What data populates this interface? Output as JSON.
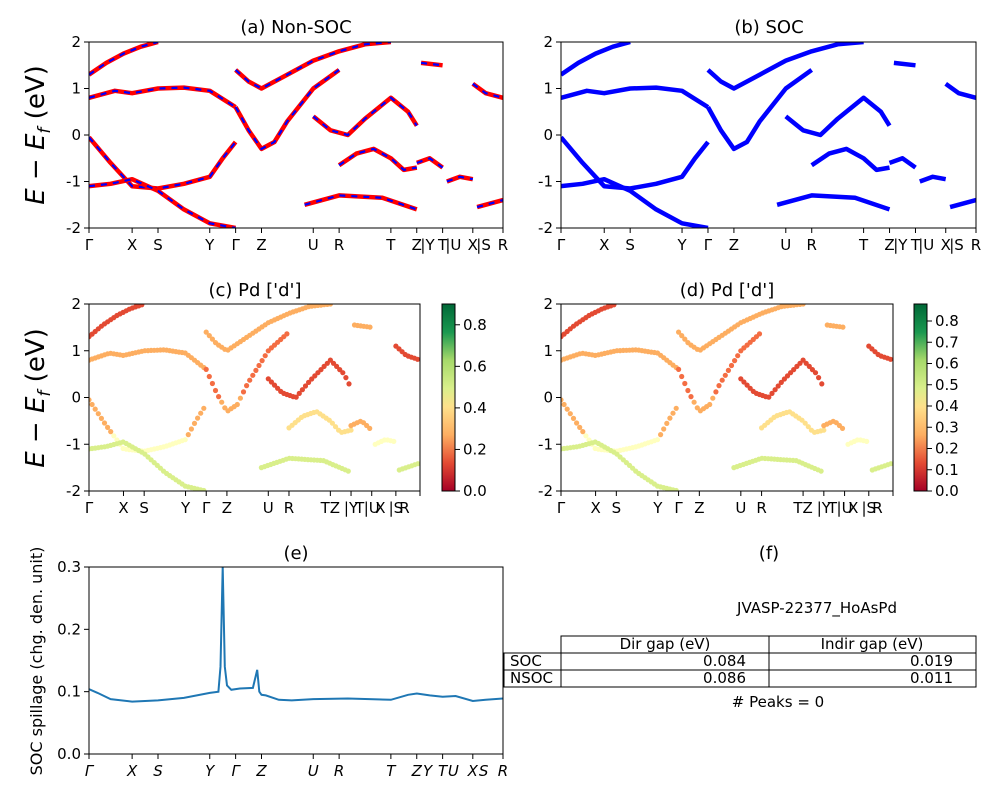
{
  "kpath": {
    "labels": [
      "Γ",
      "X",
      "S",
      "Y",
      "Γ",
      "Z",
      "U",
      "R",
      "T",
      "Z|Y",
      "T|U",
      "X|S",
      "R"
    ],
    "positions": [
      0.0,
      1.0,
      1.6,
      2.8,
      3.4,
      4.0,
      5.2,
      5.8,
      7.0,
      7.6,
      8.2,
      8.9,
      9.6
    ]
  },
  "chart_data": [
    {
      "id": "a",
      "type": "line",
      "title": "(a) Non-SOC",
      "ylabel": "E − E_f (eV)",
      "ylim": [
        -2,
        2
      ],
      "yticks": [
        "-2",
        "-1",
        "0",
        "1",
        "2"
      ],
      "xticklabels": [
        "Γ",
        "X",
        "S",
        "Y",
        "Γ",
        "Z",
        "U",
        "R",
        "T",
        "Z",
        "|Y",
        "T",
        "|U",
        "X",
        "|S",
        "R"
      ],
      "series": [
        {
          "style": "red solid + blue dashed",
          "bands": [
            {
              "x": [
                0,
                0.5,
                1,
                1.6,
                2.2,
                2.8,
                3.1,
                3.4
              ],
              "y": [
                -0.05,
                -0.6,
                -1.1,
                -1.15,
                -1.05,
                -0.9,
                -0.5,
                -0.15
              ]
            },
            {
              "x": [
                0,
                0.5,
                1,
                1.6,
                2.2,
                2.8,
                3.4
              ],
              "y": [
                -1.1,
                -1.05,
                -0.95,
                -1.2,
                -1.6,
                -1.9,
                -2.0
              ]
            },
            {
              "x": [
                0,
                0.6,
                1,
                1.6,
                2.2,
                2.8,
                3.4
              ],
              "y": [
                0.8,
                0.95,
                0.9,
                1.0,
                1.02,
                0.95,
                0.6
              ]
            },
            {
              "x": [
                0,
                0.4,
                0.8,
                1.2,
                1.6
              ],
              "y": [
                1.3,
                1.55,
                1.75,
                1.9,
                2.0
              ]
            },
            {
              "x": [
                3.4,
                3.7,
                4.0,
                4.3,
                4.6,
                5.2,
                5.8
              ],
              "y": [
                0.6,
                0.1,
                -0.3,
                -0.15,
                0.3,
                1.0,
                1.4
              ]
            },
            {
              "x": [
                3.4,
                3.7,
                4.0,
                4.6,
                5.2,
                5.8,
                6.4,
                7.0
              ],
              "y": [
                1.4,
                1.15,
                1.0,
                1.3,
                1.6,
                1.8,
                1.95,
                2.0
              ]
            },
            {
              "x": [
                5.2,
                5.6,
                6.0,
                6.4,
                7.0,
                7.4,
                7.6
              ],
              "y": [
                0.4,
                0.1,
                0.0,
                0.35,
                0.8,
                0.5,
                0.2
              ]
            },
            {
              "x": [
                5.8,
                6.2,
                6.6,
                7.0,
                7.3,
                7.6
              ],
              "y": [
                -0.65,
                -0.4,
                -0.3,
                -0.5,
                -0.75,
                -0.7
              ]
            },
            {
              "x": [
                7.6,
                7.9,
                8.2
              ],
              "y": [
                -0.6,
                -0.5,
                -0.7
              ]
            },
            {
              "x": [
                8.3,
                8.6,
                8.9
              ],
              "y": [
                -1.0,
                -0.9,
                -0.95
              ]
            },
            {
              "x": [
                9.0,
                9.6
              ],
              "y": [
                -1.55,
                -1.4
              ]
            },
            {
              "x": [
                7.7,
                8.2
              ],
              "y": [
                1.55,
                1.5
              ]
            },
            {
              "x": [
                8.9,
                9.2,
                9.6
              ],
              "y": [
                1.1,
                0.9,
                0.8
              ]
            },
            {
              "x": [
                5.0,
                5.8,
                6.8,
                7.6
              ],
              "y": [
                -1.5,
                -1.3,
                -1.35,
                -1.6
              ]
            }
          ]
        }
      ]
    },
    {
      "id": "b",
      "type": "line",
      "title": "(b) SOC",
      "ylim": [
        -2,
        2
      ],
      "yticks": [
        "-2",
        "-1",
        "0",
        "1",
        "2"
      ],
      "xticklabels": [
        "Γ",
        "X",
        "S",
        "Y",
        "Γ",
        "Z",
        "U",
        "R",
        "T",
        "Z",
        "|Y",
        "T",
        "|U",
        "X",
        "|S",
        "R"
      ],
      "series": [
        {
          "style": "blue solid",
          "bands": "same as (a)"
        }
      ]
    },
    {
      "id": "c",
      "type": "scatter",
      "title": "(c)  Pd ['d']",
      "ylim": [
        -2,
        2
      ],
      "yticks": [
        "-2",
        "-1",
        "0",
        "1",
        "2"
      ],
      "xticklabels": [
        "Γ",
        "X",
        "S",
        "Y",
        "Γ",
        "Z",
        "U",
        "R",
        "TZ",
        "|Y",
        "T",
        "|U",
        "X",
        "|S",
        "R"
      ],
      "colorbar": {
        "min": 0.0,
        "max": 0.9,
        "ticks": [
          "0.0",
          "0.2",
          "0.4",
          "0.6",
          "0.8"
        ],
        "cmap": "RdYlGn"
      }
    },
    {
      "id": "d",
      "type": "scatter",
      "title": "(d) Pd ['d']",
      "ylim": [
        -2,
        2
      ],
      "yticks": [
        "-2",
        "-1",
        "0",
        "1",
        "2"
      ],
      "xticklabels": [
        "Γ",
        "X",
        "S",
        "Y",
        "Γ",
        "Z",
        "U",
        "R",
        "TZ",
        "|Y",
        "T",
        "|U",
        "X",
        "|S",
        "R"
      ],
      "colorbar": {
        "min": 0.0,
        "max": 0.88,
        "ticks": [
          "0.0",
          "0.1",
          "0.2",
          "0.3",
          "0.4",
          "0.5",
          "0.6",
          "0.7",
          "0.8"
        ],
        "cmap": "RdYlGn"
      }
    },
    {
      "id": "e",
      "type": "line",
      "title": "(e)",
      "ylabel": "SOC spillage (chg. den. unit)",
      "ylim": [
        0.0,
        0.3
      ],
      "yticks": [
        "0.0",
        "0.1",
        "0.2",
        "0.3"
      ],
      "xticklabels": [
        "Γ",
        "X",
        "S",
        "Y",
        "Γ",
        "Z",
        "U",
        "R",
        "T",
        "Z",
        "Y",
        "T",
        "U",
        "X",
        "S",
        "R"
      ],
      "series": [
        {
          "color": "#1f77b4",
          "x": [
            0,
            0.2,
            0.5,
            1,
            1.6,
            2.2,
            2.8,
            3.0,
            3.05,
            3.1,
            3.15,
            3.2,
            3.3,
            3.5,
            3.8,
            3.9,
            3.95,
            4.0,
            4.1,
            4.4,
            4.7,
            5.2,
            6,
            6.5,
            7.0,
            7.4,
            7.6,
            7.8,
            7.9,
            8.2,
            8.5,
            8.9,
            9.2,
            9.6
          ],
          "y": [
            0.104,
            0.098,
            0.088,
            0.084,
            0.086,
            0.09,
            0.098,
            0.1,
            0.14,
            0.3,
            0.14,
            0.11,
            0.103,
            0.105,
            0.106,
            0.135,
            0.1,
            0.095,
            0.094,
            0.087,
            0.086,
            0.088,
            0.089,
            0.088,
            0.087,
            0.095,
            0.097,
            0.095,
            0.094,
            0.092,
            0.093,
            0.085,
            0.087,
            0.089
          ]
        }
      ]
    }
  ],
  "table": {
    "title": "(f)",
    "material": "JVASP-22377_HoAsPd",
    "headers": [
      "",
      "Dir gap (eV)",
      "Indir gap (eV)"
    ],
    "rows": [
      {
        "label": "SOC",
        "dir": "0.084",
        "indir": "0.019"
      },
      {
        "label": "NSOC",
        "dir": "0.086",
        "indir": "0.011"
      }
    ],
    "peaks": "# Peaks = 0"
  }
}
